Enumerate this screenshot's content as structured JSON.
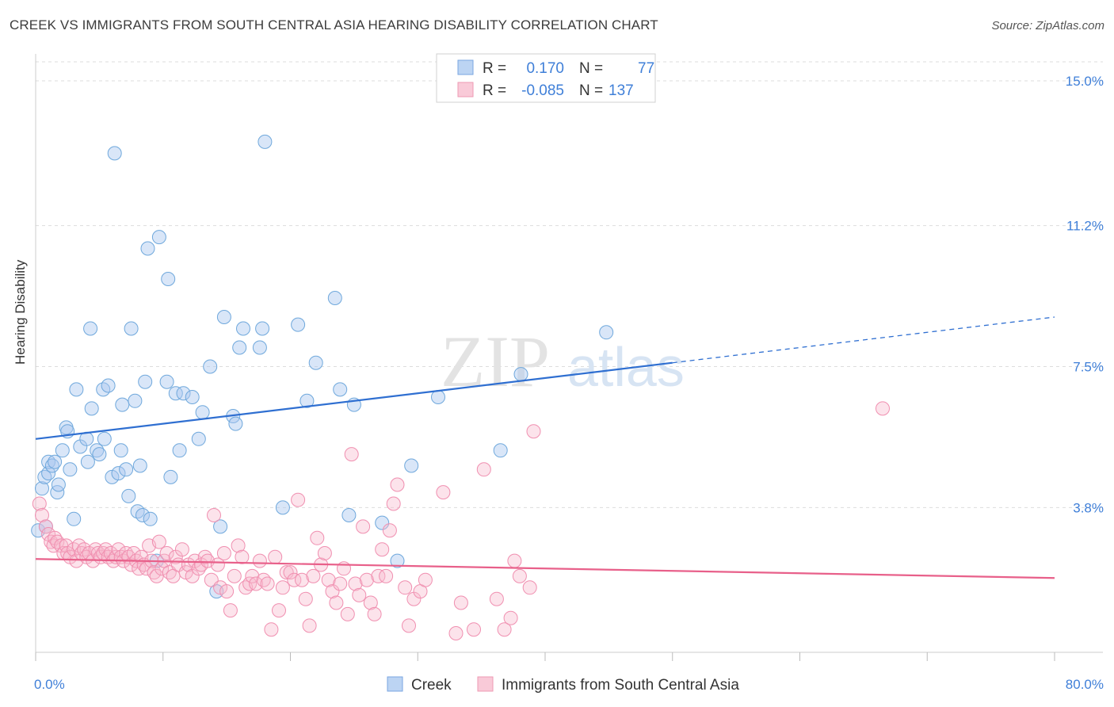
{
  "title": "CREEK VS IMMIGRANTS FROM SOUTH CENTRAL ASIA HEARING DISABILITY CORRELATION CHART",
  "source": "Source: ZipAtlas.com",
  "watermark": {
    "zip": "ZIP",
    "atlas": "atlas"
  },
  "legend_top": [
    {
      "r_label": "R =",
      "r_value": "0.170",
      "n_label": "N =",
      "n_value": "77"
    },
    {
      "r_label": "R =",
      "r_value": "-0.085",
      "n_label": "N =",
      "n_value": "137"
    }
  ],
  "chart_data": {
    "type": "scatter",
    "title": "CREEK VS IMMIGRANTS FROM SOUTH CENTRAL ASIA HEARING DISABILITY CORRELATION CHART",
    "ylabel": "Hearing Disability",
    "xlabel": "",
    "xlim": [
      0,
      80
    ],
    "ylim": [
      0,
      15.5
    ],
    "x_tick_labels": [
      "0.0%",
      "80.0%"
    ],
    "y_ticks": [
      3.8,
      7.5,
      11.2,
      15.0
    ],
    "y_tick_labels": [
      "3.8%",
      "7.5%",
      "11.2%",
      "15.0%"
    ],
    "grid": true,
    "legend_position": "bottom-center",
    "colors": {
      "creek": "#6fa8dc",
      "creek_line": "#2f6fd1",
      "immigrants": "#f59ab5",
      "immigrants_line": "#e8608a",
      "tick_text": "#3f7fd8"
    },
    "series": [
      {
        "name": "Creek",
        "r": 0.17,
        "n": 77,
        "trend": {
          "x0": 0,
          "y0": 5.6,
          "x1": 50,
          "y1": 7.6,
          "dash_to_x": 80,
          "dash_to_y": 8.8
        },
        "points": [
          [
            0.2,
            3.2
          ],
          [
            0.5,
            4.3
          ],
          [
            0.7,
            4.6
          ],
          [
            0.8,
            3.3
          ],
          [
            1.0,
            4.7
          ],
          [
            1.0,
            5.0
          ],
          [
            1.3,
            4.9
          ],
          [
            1.5,
            5.0
          ],
          [
            1.7,
            4.2
          ],
          [
            1.8,
            4.4
          ],
          [
            2.1,
            5.3
          ],
          [
            2.4,
            5.9
          ],
          [
            2.5,
            5.8
          ],
          [
            2.7,
            4.8
          ],
          [
            3.0,
            3.5
          ],
          [
            3.2,
            6.9
          ],
          [
            3.5,
            5.4
          ],
          [
            4.0,
            5.6
          ],
          [
            4.1,
            5.0
          ],
          [
            4.3,
            8.5
          ],
          [
            4.4,
            6.4
          ],
          [
            4.8,
            5.3
          ],
          [
            5.0,
            5.2
          ],
          [
            5.3,
            6.9
          ],
          [
            5.4,
            5.6
          ],
          [
            5.7,
            7.0
          ],
          [
            6.0,
            4.6
          ],
          [
            6.2,
            13.1
          ],
          [
            6.5,
            4.7
          ],
          [
            6.7,
            5.3
          ],
          [
            6.8,
            6.5
          ],
          [
            7.1,
            4.8
          ],
          [
            7.3,
            4.1
          ],
          [
            7.5,
            8.5
          ],
          [
            7.8,
            6.6
          ],
          [
            8.0,
            3.7
          ],
          [
            8.2,
            4.9
          ],
          [
            8.4,
            3.6
          ],
          [
            8.6,
            7.1
          ],
          [
            8.8,
            10.6
          ],
          [
            9.0,
            3.5
          ],
          [
            9.5,
            2.4
          ],
          [
            9.7,
            10.9
          ],
          [
            10.3,
            7.1
          ],
          [
            10.4,
            9.8
          ],
          [
            10.6,
            4.6
          ],
          [
            11.0,
            6.8
          ],
          [
            11.3,
            5.3
          ],
          [
            11.6,
            6.8
          ],
          [
            12.3,
            6.7
          ],
          [
            12.8,
            5.6
          ],
          [
            13.1,
            6.3
          ],
          [
            13.7,
            7.5
          ],
          [
            14.2,
            1.6
          ],
          [
            14.5,
            3.3
          ],
          [
            14.8,
            8.8
          ],
          [
            15.5,
            6.2
          ],
          [
            15.7,
            6.0
          ],
          [
            16.0,
            8.0
          ],
          [
            16.3,
            8.5
          ],
          [
            17.6,
            8.0
          ],
          [
            17.8,
            8.5
          ],
          [
            18.0,
            13.4
          ],
          [
            19.4,
            3.8
          ],
          [
            20.6,
            8.6
          ],
          [
            21.3,
            6.6
          ],
          [
            22.0,
            7.6
          ],
          [
            23.5,
            9.3
          ],
          [
            23.9,
            6.9
          ],
          [
            24.6,
            3.6
          ],
          [
            25.0,
            6.5
          ],
          [
            27.2,
            3.4
          ],
          [
            28.4,
            2.4
          ],
          [
            29.5,
            4.9
          ],
          [
            31.6,
            6.7
          ],
          [
            36.5,
            5.3
          ],
          [
            38.1,
            7.3
          ],
          [
            44.8,
            8.4
          ]
        ]
      },
      {
        "name": "Immigrants from South Central Asia",
        "r": -0.085,
        "n": 137,
        "trend": {
          "x0": 0,
          "y0": 2.45,
          "x1": 80,
          "y1": 1.95
        },
        "points": [
          [
            0.3,
            3.9
          ],
          [
            0.5,
            3.6
          ],
          [
            0.8,
            3.3
          ],
          [
            1.0,
            3.1
          ],
          [
            1.2,
            2.9
          ],
          [
            1.4,
            2.8
          ],
          [
            1.5,
            3.0
          ],
          [
            1.7,
            2.9
          ],
          [
            2.0,
            2.8
          ],
          [
            2.2,
            2.6
          ],
          [
            2.4,
            2.8
          ],
          [
            2.5,
            2.6
          ],
          [
            2.7,
            2.5
          ],
          [
            3.0,
            2.7
          ],
          [
            3.2,
            2.4
          ],
          [
            3.4,
            2.8
          ],
          [
            3.6,
            2.6
          ],
          [
            3.8,
            2.7
          ],
          [
            4.0,
            2.5
          ],
          [
            4.2,
            2.6
          ],
          [
            4.5,
            2.4
          ],
          [
            4.7,
            2.7
          ],
          [
            4.9,
            2.6
          ],
          [
            5.1,
            2.5
          ],
          [
            5.3,
            2.6
          ],
          [
            5.5,
            2.7
          ],
          [
            5.7,
            2.5
          ],
          [
            5.9,
            2.6
          ],
          [
            6.1,
            2.4
          ],
          [
            6.3,
            2.5
          ],
          [
            6.5,
            2.7
          ],
          [
            6.7,
            2.5
          ],
          [
            6.9,
            2.4
          ],
          [
            7.1,
            2.6
          ],
          [
            7.3,
            2.5
          ],
          [
            7.5,
            2.3
          ],
          [
            7.7,
            2.6
          ],
          [
            7.9,
            2.4
          ],
          [
            8.1,
            2.2
          ],
          [
            8.3,
            2.5
          ],
          [
            8.5,
            2.3
          ],
          [
            8.7,
            2.2
          ],
          [
            8.9,
            2.8
          ],
          [
            9.1,
            2.4
          ],
          [
            9.3,
            2.1
          ],
          [
            9.5,
            2.0
          ],
          [
            9.7,
            2.9
          ],
          [
            9.9,
            2.2
          ],
          [
            10.1,
            2.4
          ],
          [
            10.3,
            2.6
          ],
          [
            10.5,
            2.1
          ],
          [
            10.8,
            2.0
          ],
          [
            11.0,
            2.5
          ],
          [
            11.2,
            2.3
          ],
          [
            11.5,
            2.7
          ],
          [
            11.8,
            2.1
          ],
          [
            12.0,
            2.3
          ],
          [
            12.3,
            2.0
          ],
          [
            12.5,
            2.4
          ],
          [
            12.8,
            2.2
          ],
          [
            13.0,
            2.3
          ],
          [
            13.3,
            2.5
          ],
          [
            13.5,
            2.4
          ],
          [
            13.8,
            1.9
          ],
          [
            14.0,
            3.6
          ],
          [
            14.3,
            2.3
          ],
          [
            14.5,
            1.7
          ],
          [
            14.8,
            2.6
          ],
          [
            15.0,
            1.6
          ],
          [
            15.3,
            1.1
          ],
          [
            15.6,
            2.0
          ],
          [
            15.9,
            2.8
          ],
          [
            16.2,
            2.5
          ],
          [
            16.5,
            1.7
          ],
          [
            16.8,
            1.8
          ],
          [
            17.0,
            2.0
          ],
          [
            17.3,
            1.8
          ],
          [
            17.6,
            2.4
          ],
          [
            17.9,
            1.9
          ],
          [
            18.2,
            1.8
          ],
          [
            18.5,
            0.6
          ],
          [
            18.8,
            2.5
          ],
          [
            19.1,
            1.1
          ],
          [
            19.4,
            1.7
          ],
          [
            19.7,
            2.1
          ],
          [
            20.0,
            2.1
          ],
          [
            20.3,
            1.9
          ],
          [
            20.6,
            4.0
          ],
          [
            20.9,
            1.9
          ],
          [
            21.2,
            1.4
          ],
          [
            21.5,
            0.7
          ],
          [
            21.8,
            2.0
          ],
          [
            22.1,
            3.0
          ],
          [
            22.4,
            2.3
          ],
          [
            22.7,
            2.6
          ],
          [
            23.0,
            1.9
          ],
          [
            23.3,
            1.6
          ],
          [
            23.6,
            1.3
          ],
          [
            23.9,
            1.8
          ],
          [
            24.2,
            2.2
          ],
          [
            24.5,
            1.0
          ],
          [
            24.8,
            5.2
          ],
          [
            25.1,
            1.8
          ],
          [
            25.4,
            1.5
          ],
          [
            25.7,
            3.3
          ],
          [
            26.0,
            1.9
          ],
          [
            26.3,
            1.3
          ],
          [
            26.6,
            1.0
          ],
          [
            26.9,
            2.0
          ],
          [
            27.2,
            2.7
          ],
          [
            27.5,
            2.0
          ],
          [
            27.8,
            3.2
          ],
          [
            28.1,
            3.9
          ],
          [
            28.4,
            4.4
          ],
          [
            29.0,
            1.7
          ],
          [
            29.3,
            0.7
          ],
          [
            29.7,
            1.4
          ],
          [
            30.2,
            1.6
          ],
          [
            30.6,
            1.9
          ],
          [
            32.0,
            4.2
          ],
          [
            33.0,
            0.5
          ],
          [
            33.4,
            1.3
          ],
          [
            34.4,
            0.6
          ],
          [
            35.2,
            4.8
          ],
          [
            36.2,
            1.4
          ],
          [
            36.8,
            0.6
          ],
          [
            37.3,
            0.9
          ],
          [
            37.6,
            2.4
          ],
          [
            38.0,
            2.0
          ],
          [
            38.8,
            1.7
          ],
          [
            39.1,
            5.8
          ],
          [
            66.5,
            6.4
          ]
        ]
      }
    ]
  }
}
